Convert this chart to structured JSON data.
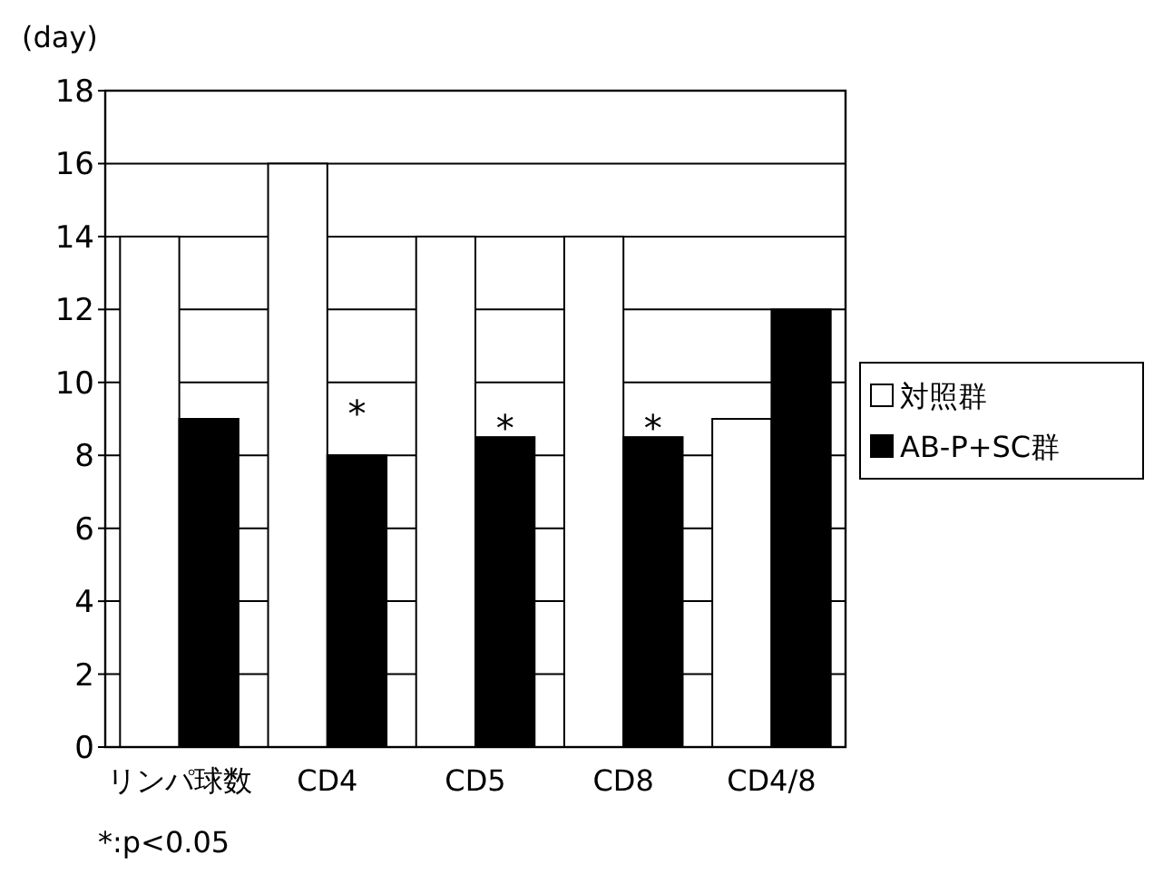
{
  "chart_data": {
    "type": "bar",
    "ylabel": "(day)",
    "categories": [
      "リンパ球数",
      "CD4",
      "CD5",
      "CD8",
      "CD4/8"
    ],
    "series": [
      {
        "name": "対照群",
        "color": "#ffffff",
        "values": [
          14,
          16,
          14,
          14,
          9
        ]
      },
      {
        "name": "AB-P+SC群",
        "color": "#000000",
        "values": [
          9,
          8,
          8.5,
          8.5,
          12
        ]
      }
    ],
    "ylim": [
      0,
      18
    ],
    "yticks": [
      0,
      2,
      4,
      6,
      8,
      10,
      12,
      14,
      16,
      18
    ],
    "grid": "y",
    "legend": "right",
    "annotations": [
      {
        "text": "*",
        "x": "CD4",
        "y": 9.3
      },
      {
        "text": "*",
        "x": "CD5",
        "y": 8.9
      },
      {
        "text": "*",
        "x": "CD8",
        "y": 8.9
      },
      "*:p<0.05"
    ]
  }
}
